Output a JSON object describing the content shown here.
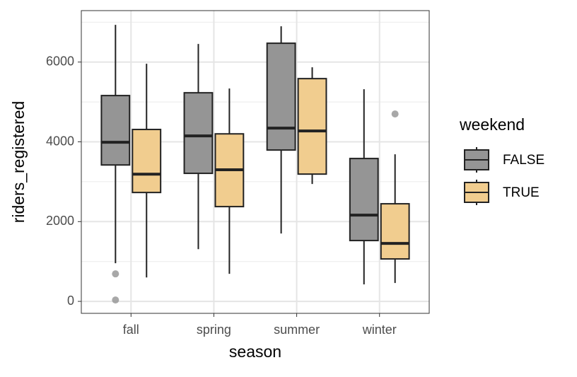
{
  "chart_data": {
    "type": "boxplot",
    "x_label": "season",
    "y_label": "riders_registered",
    "categories": [
      "fall",
      "spring",
      "summer",
      "winter"
    ],
    "legend_title": "weekend",
    "series": [
      {
        "name": "FALSE",
        "color": "#959595",
        "values": [
          {
            "min": 957,
            "q1": 3420,
            "median": 3990,
            "q3": 5160,
            "max": 6933,
            "outliers": [
              690,
              35
            ]
          },
          {
            "min": 1310,
            "q1": 3210,
            "median": 4150,
            "q3": 5230,
            "max": 6454,
            "outliers": []
          },
          {
            "min": 1702,
            "q1": 3794,
            "median": 4344,
            "q3": 6472,
            "max": 6897,
            "outliers": []
          },
          {
            "min": 426,
            "q1": 1525,
            "median": 2163,
            "q3": 3582,
            "max": 5319,
            "outliers": []
          }
        ]
      },
      {
        "name": "TRUE",
        "color": "#f1cd8f",
        "values": [
          {
            "min": 600,
            "q1": 2730,
            "median": 3190,
            "q3": 4310,
            "max": 5957,
            "outliers": []
          },
          {
            "min": 690,
            "q1": 2376,
            "median": 3300,
            "q3": 4200,
            "max": 5337,
            "outliers": []
          },
          {
            "min": 2943,
            "q1": 3191,
            "median": 4273,
            "q3": 5585,
            "max": 5869,
            "outliers": []
          },
          {
            "min": 461,
            "q1": 1064,
            "median": 1454,
            "q3": 2447,
            "max": 3688,
            "outliers": [
              4699
            ]
          }
        ]
      }
    ],
    "ylim": [
      -300,
      7290
    ],
    "yticks": [
      0,
      2000,
      4000,
      6000
    ],
    "grid": true,
    "minor_grid": true,
    "legend_position": "right"
  }
}
